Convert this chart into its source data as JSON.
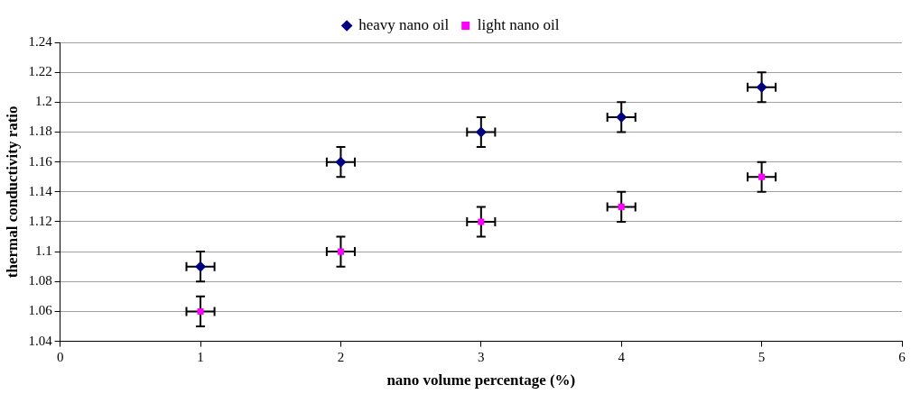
{
  "chart_data": {
    "type": "scatter",
    "xlabel": "nano volume percentage (%)",
    "ylabel": "thermal conductivity ratio",
    "x": [
      1,
      2,
      3,
      4,
      5
    ],
    "series": [
      {
        "name": "heavy nano oil",
        "color": "#000080",
        "marker": "diamond",
        "values": [
          1.09,
          1.16,
          1.18,
          1.19,
          1.21
        ],
        "errors": [
          0.01,
          0.01,
          0.01,
          0.01,
          0.01
        ],
        "xerrors": [
          0.1,
          0.1,
          0.1,
          0.1,
          0.1
        ]
      },
      {
        "name": "light nano oil",
        "color": "#ff00ff",
        "marker": "square",
        "values": [
          1.06,
          1.1,
          1.12,
          1.13,
          1.15
        ],
        "errors": [
          0.01,
          0.01,
          0.01,
          0.01,
          0.01
        ],
        "xerrors": [
          0.1,
          0.1,
          0.1,
          0.1,
          0.1
        ]
      }
    ],
    "xlim": [
      0,
      6
    ],
    "xticks": [
      0,
      1,
      2,
      3,
      4,
      5,
      6
    ],
    "ylim": [
      1.04,
      1.24
    ],
    "yticks": [
      1.04,
      1.06,
      1.08,
      1.1,
      1.12,
      1.14,
      1.16,
      1.18,
      1.2,
      1.22,
      1.24
    ],
    "grid": "y",
    "legend": "top"
  }
}
